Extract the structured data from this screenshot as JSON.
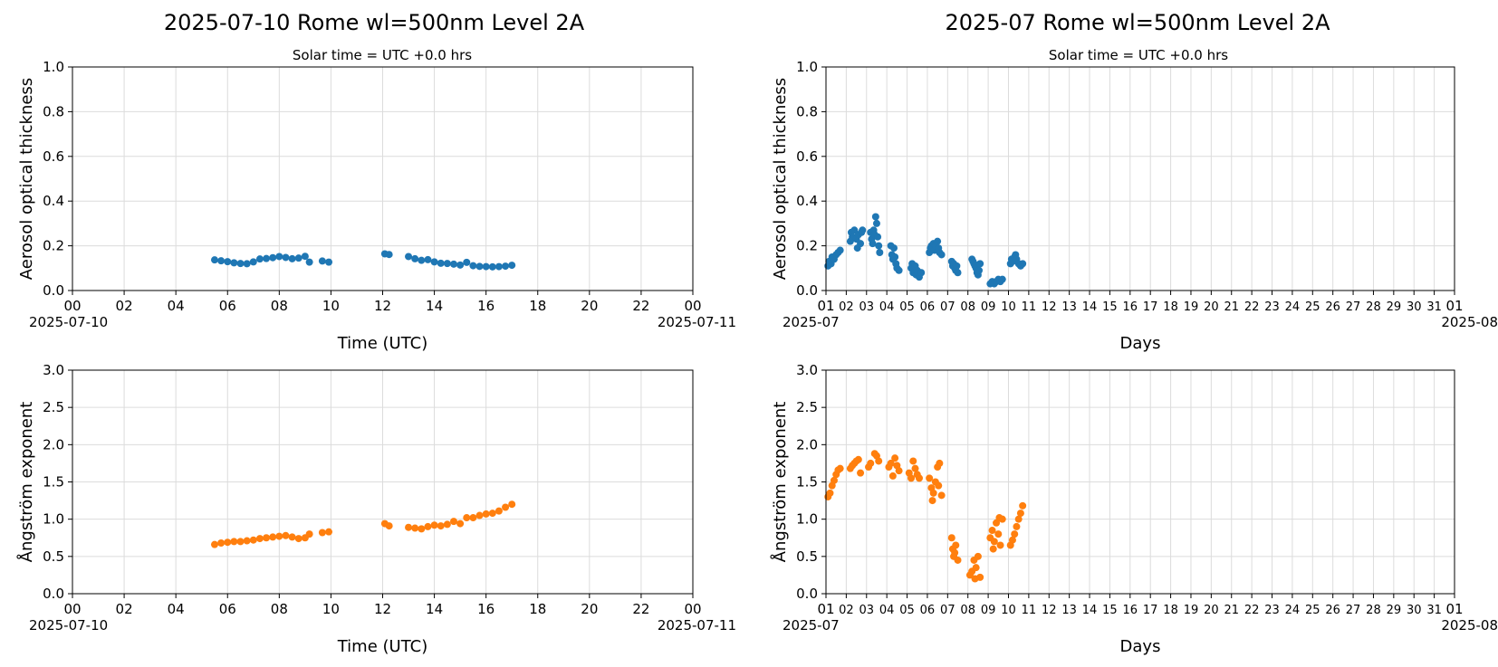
{
  "colors": {
    "aot": "#1f77b4",
    "angstrom": "#ff7f0e",
    "grid": "#dcdcdc"
  },
  "titles": {
    "left": "2025-07-10  Rome  wl=500nm  Level 2A",
    "right": "2025-07  Rome  wl=500nm  Level 2A",
    "solar": "Solar time = UTC +0.0 hrs"
  },
  "chart_data": [
    {
      "type": "scatter",
      "panel": "daily-aot",
      "ylabel": "Aerosol optical thickness",
      "ylim": [
        0,
        1.0
      ],
      "yticks": [
        "0.0",
        "0.2",
        "0.4",
        "0.6",
        "0.8",
        "1.0"
      ],
      "xlim": [
        "2025-07-10 00:00",
        "2025-07-11 00:00"
      ],
      "xticks": [
        "00",
        "02",
        "04",
        "06",
        "08",
        "10",
        "12",
        "14",
        "16",
        "18",
        "20",
        "22",
        "00"
      ],
      "x_left_label": "2025-07-10",
      "x_right_label": "2025-07-11",
      "grid": true,
      "points": [
        {
          "t": "05:30",
          "y": 0.137
        },
        {
          "t": "05:45",
          "y": 0.133
        },
        {
          "t": "06:00",
          "y": 0.129
        },
        {
          "t": "06:15",
          "y": 0.124
        },
        {
          "t": "06:30",
          "y": 0.121
        },
        {
          "t": "06:45",
          "y": 0.12
        },
        {
          "t": "07:00",
          "y": 0.128
        },
        {
          "t": "07:15",
          "y": 0.141
        },
        {
          "t": "07:30",
          "y": 0.143
        },
        {
          "t": "07:45",
          "y": 0.147
        },
        {
          "t": "08:00",
          "y": 0.152
        },
        {
          "t": "08:15",
          "y": 0.148
        },
        {
          "t": "08:30",
          "y": 0.142
        },
        {
          "t": "08:45",
          "y": 0.145
        },
        {
          "t": "09:00",
          "y": 0.153
        },
        {
          "t": "09:10",
          "y": 0.127
        },
        {
          "t": "09:40",
          "y": 0.132
        },
        {
          "t": "09:55",
          "y": 0.127
        },
        {
          "t": "12:05",
          "y": 0.164
        },
        {
          "t": "12:15",
          "y": 0.161
        },
        {
          "t": "13:00",
          "y": 0.152
        },
        {
          "t": "13:15",
          "y": 0.142
        },
        {
          "t": "13:30",
          "y": 0.135
        },
        {
          "t": "13:45",
          "y": 0.138
        },
        {
          "t": "14:00",
          "y": 0.128
        },
        {
          "t": "14:15",
          "y": 0.122
        },
        {
          "t": "14:30",
          "y": 0.121
        },
        {
          "t": "14:45",
          "y": 0.118
        },
        {
          "t": "15:00",
          "y": 0.114
        },
        {
          "t": "15:15",
          "y": 0.126
        },
        {
          "t": "15:30",
          "y": 0.111
        },
        {
          "t": "15:45",
          "y": 0.108
        },
        {
          "t": "16:00",
          "y": 0.107
        },
        {
          "t": "16:15",
          "y": 0.106
        },
        {
          "t": "16:30",
          "y": 0.107
        },
        {
          "t": "16:45",
          "y": 0.109
        },
        {
          "t": "17:00",
          "y": 0.113
        }
      ]
    },
    {
      "type": "scatter",
      "panel": "monthly-aot",
      "ylabel": "Aerosol optical thickness",
      "xlabel": "Days",
      "ylim": [
        0,
        1.0
      ],
      "yticks": [
        "0.0",
        "0.2",
        "0.4",
        "0.6",
        "0.8",
        "1.0"
      ],
      "xlim": [
        "2025-07-01",
        "2025-08-01"
      ],
      "xticks": [
        "01",
        "02",
        "03",
        "04",
        "05",
        "06",
        "07",
        "08",
        "09",
        "10",
        "11",
        "12",
        "13",
        "14",
        "15",
        "16",
        "17",
        "18",
        "19",
        "20",
        "21",
        "22",
        "23",
        "24",
        "25",
        "26",
        "27",
        "28",
        "29",
        "30",
        "31",
        "01"
      ],
      "x_left_label": "2025-07",
      "x_right_label": "2025-08",
      "grid": true,
      "points": [
        {
          "d": 1.1,
          "y": 0.11
        },
        {
          "d": 1.15,
          "y": 0.13
        },
        {
          "d": 1.25,
          "y": 0.12
        },
        {
          "d": 1.3,
          "y": 0.15
        },
        {
          "d": 1.4,
          "y": 0.14
        },
        {
          "d": 1.5,
          "y": 0.16
        },
        {
          "d": 1.6,
          "y": 0.17
        },
        {
          "d": 1.7,
          "y": 0.18
        },
        {
          "d": 2.2,
          "y": 0.22
        },
        {
          "d": 2.25,
          "y": 0.26
        },
        {
          "d": 2.3,
          "y": 0.24
        },
        {
          "d": 2.4,
          "y": 0.27
        },
        {
          "d": 2.5,
          "y": 0.23
        },
        {
          "d": 2.55,
          "y": 0.19
        },
        {
          "d": 2.6,
          "y": 0.25
        },
        {
          "d": 2.7,
          "y": 0.21
        },
        {
          "d": 2.75,
          "y": 0.26
        },
        {
          "d": 2.8,
          "y": 0.27
        },
        {
          "d": 3.2,
          "y": 0.26
        },
        {
          "d": 3.25,
          "y": 0.23
        },
        {
          "d": 3.3,
          "y": 0.21
        },
        {
          "d": 3.35,
          "y": 0.27
        },
        {
          "d": 3.4,
          "y": 0.25
        },
        {
          "d": 3.45,
          "y": 0.33
        },
        {
          "d": 3.5,
          "y": 0.3
        },
        {
          "d": 3.55,
          "y": 0.24
        },
        {
          "d": 3.6,
          "y": 0.2
        },
        {
          "d": 3.65,
          "y": 0.17
        },
        {
          "d": 4.2,
          "y": 0.2
        },
        {
          "d": 4.25,
          "y": 0.16
        },
        {
          "d": 4.3,
          "y": 0.14
        },
        {
          "d": 4.35,
          "y": 0.19
        },
        {
          "d": 4.4,
          "y": 0.15
        },
        {
          "d": 4.45,
          "y": 0.12
        },
        {
          "d": 4.5,
          "y": 0.1
        },
        {
          "d": 4.6,
          "y": 0.09
        },
        {
          "d": 5.2,
          "y": 0.1
        },
        {
          "d": 5.25,
          "y": 0.12
        },
        {
          "d": 5.3,
          "y": 0.08
        },
        {
          "d": 5.4,
          "y": 0.11
        },
        {
          "d": 5.45,
          "y": 0.07
        },
        {
          "d": 5.5,
          "y": 0.09
        },
        {
          "d": 5.6,
          "y": 0.06
        },
        {
          "d": 5.7,
          "y": 0.08
        },
        {
          "d": 6.1,
          "y": 0.17
        },
        {
          "d": 6.15,
          "y": 0.19
        },
        {
          "d": 6.2,
          "y": 0.2
        },
        {
          "d": 6.3,
          "y": 0.21
        },
        {
          "d": 6.35,
          "y": 0.18
        },
        {
          "d": 6.4,
          "y": 0.2
        },
        {
          "d": 6.5,
          "y": 0.22
        },
        {
          "d": 6.55,
          "y": 0.19
        },
        {
          "d": 6.6,
          "y": 0.17
        },
        {
          "d": 6.7,
          "y": 0.16
        },
        {
          "d": 7.2,
          "y": 0.13
        },
        {
          "d": 7.25,
          "y": 0.11
        },
        {
          "d": 7.3,
          "y": 0.12
        },
        {
          "d": 7.35,
          "y": 0.1
        },
        {
          "d": 7.4,
          "y": 0.09
        },
        {
          "d": 7.45,
          "y": 0.11
        },
        {
          "d": 7.5,
          "y": 0.08
        },
        {
          "d": 8.2,
          "y": 0.14
        },
        {
          "d": 8.25,
          "y": 0.13
        },
        {
          "d": 8.3,
          "y": 0.12
        },
        {
          "d": 8.35,
          "y": 0.11
        },
        {
          "d": 8.4,
          "y": 0.1
        },
        {
          "d": 8.45,
          "y": 0.08
        },
        {
          "d": 8.5,
          "y": 0.07
        },
        {
          "d": 8.55,
          "y": 0.09
        },
        {
          "d": 8.6,
          "y": 0.12
        },
        {
          "d": 9.1,
          "y": 0.03
        },
        {
          "d": 9.2,
          "y": 0.04
        },
        {
          "d": 9.3,
          "y": 0.03
        },
        {
          "d": 9.4,
          "y": 0.04
        },
        {
          "d": 9.5,
          "y": 0.05
        },
        {
          "d": 9.6,
          "y": 0.04
        },
        {
          "d": 9.7,
          "y": 0.05
        },
        {
          "d": 10.1,
          "y": 0.12
        },
        {
          "d": 10.15,
          "y": 0.14
        },
        {
          "d": 10.2,
          "y": 0.13
        },
        {
          "d": 10.3,
          "y": 0.15
        },
        {
          "d": 10.35,
          "y": 0.16
        },
        {
          "d": 10.4,
          "y": 0.14
        },
        {
          "d": 10.5,
          "y": 0.12
        },
        {
          "d": 10.6,
          "y": 0.11
        },
        {
          "d": 10.7,
          "y": 0.12
        }
      ]
    },
    {
      "type": "scatter",
      "panel": "daily-angstrom",
      "ylabel": "Ångström exponent",
      "xlabel": "Time (UTC)",
      "ylim": [
        0,
        3.0
      ],
      "yticks": [
        "0.0",
        "0.5",
        "1.0",
        "1.5",
        "2.0",
        "2.5",
        "3.0"
      ],
      "xlim": [
        "2025-07-10 00:00",
        "2025-07-11 00:00"
      ],
      "xticks": [
        "00",
        "02",
        "04",
        "06",
        "08",
        "10",
        "12",
        "14",
        "16",
        "18",
        "20",
        "22",
        "00"
      ],
      "x_left_label": "2025-07-10",
      "x_right_label": "2025-07-11",
      "grid": true,
      "points": [
        {
          "t": "05:30",
          "y": 0.66
        },
        {
          "t": "05:45",
          "y": 0.68
        },
        {
          "t": "06:00",
          "y": 0.69
        },
        {
          "t": "06:15",
          "y": 0.7
        },
        {
          "t": "06:30",
          "y": 0.7
        },
        {
          "t": "06:45",
          "y": 0.71
        },
        {
          "t": "07:00",
          "y": 0.72
        },
        {
          "t": "07:15",
          "y": 0.74
        },
        {
          "t": "07:30",
          "y": 0.75
        },
        {
          "t": "07:45",
          "y": 0.76
        },
        {
          "t": "08:00",
          "y": 0.77
        },
        {
          "t": "08:15",
          "y": 0.78
        },
        {
          "t": "08:30",
          "y": 0.76
        },
        {
          "t": "08:45",
          "y": 0.74
        },
        {
          "t": "09:00",
          "y": 0.75
        },
        {
          "t": "09:10",
          "y": 0.8
        },
        {
          "t": "09:40",
          "y": 0.82
        },
        {
          "t": "09:55",
          "y": 0.83
        },
        {
          "t": "12:05",
          "y": 0.94
        },
        {
          "t": "12:15",
          "y": 0.91
        },
        {
          "t": "13:00",
          "y": 0.89
        },
        {
          "t": "13:15",
          "y": 0.88
        },
        {
          "t": "13:30",
          "y": 0.87
        },
        {
          "t": "13:45",
          "y": 0.9
        },
        {
          "t": "14:00",
          "y": 0.92
        },
        {
          "t": "14:15",
          "y": 0.91
        },
        {
          "t": "14:30",
          "y": 0.93
        },
        {
          "t": "14:45",
          "y": 0.97
        },
        {
          "t": "15:00",
          "y": 0.94
        },
        {
          "t": "15:15",
          "y": 1.02
        },
        {
          "t": "15:30",
          "y": 1.02
        },
        {
          "t": "15:45",
          "y": 1.05
        },
        {
          "t": "16:00",
          "y": 1.07
        },
        {
          "t": "16:15",
          "y": 1.08
        },
        {
          "t": "16:30",
          "y": 1.11
        },
        {
          "t": "16:45",
          "y": 1.16
        },
        {
          "t": "17:00",
          "y": 1.2
        }
      ]
    },
    {
      "type": "scatter",
      "panel": "monthly-angstrom",
      "ylabel": "Ångström exponent",
      "xlabel": "Days",
      "ylim": [
        0,
        3.0
      ],
      "yticks": [
        "0.0",
        "0.5",
        "1.0",
        "1.5",
        "2.0",
        "2.5",
        "3.0"
      ],
      "xlim": [
        "2025-07-01",
        "2025-08-01"
      ],
      "xticks": [
        "01",
        "02",
        "03",
        "04",
        "05",
        "06",
        "07",
        "08",
        "09",
        "10",
        "11",
        "12",
        "13",
        "14",
        "15",
        "16",
        "17",
        "18",
        "19",
        "20",
        "21",
        "22",
        "23",
        "24",
        "25",
        "26",
        "27",
        "28",
        "29",
        "30",
        "31",
        "01"
      ],
      "x_left_label": "2025-07",
      "x_right_label": "2025-08",
      "grid": true,
      "points": [
        {
          "d": 1.1,
          "y": 1.3
        },
        {
          "d": 1.2,
          "y": 1.35
        },
        {
          "d": 1.3,
          "y": 1.45
        },
        {
          "d": 1.4,
          "y": 1.52
        },
        {
          "d": 1.5,
          "y": 1.6
        },
        {
          "d": 1.6,
          "y": 1.66
        },
        {
          "d": 1.7,
          "y": 1.68
        },
        {
          "d": 2.2,
          "y": 1.68
        },
        {
          "d": 2.3,
          "y": 1.72
        },
        {
          "d": 2.4,
          "y": 1.75
        },
        {
          "d": 2.5,
          "y": 1.78
        },
        {
          "d": 2.6,
          "y": 1.8
        },
        {
          "d": 2.7,
          "y": 1.62
        },
        {
          "d": 3.1,
          "y": 1.7
        },
        {
          "d": 3.2,
          "y": 1.75
        },
        {
          "d": 3.4,
          "y": 1.88
        },
        {
          "d": 3.5,
          "y": 1.85
        },
        {
          "d": 3.6,
          "y": 1.78
        },
        {
          "d": 4.1,
          "y": 1.7
        },
        {
          "d": 4.2,
          "y": 1.75
        },
        {
          "d": 4.3,
          "y": 1.58
        },
        {
          "d": 4.4,
          "y": 1.82
        },
        {
          "d": 4.5,
          "y": 1.72
        },
        {
          "d": 4.6,
          "y": 1.65
        },
        {
          "d": 5.1,
          "y": 1.62
        },
        {
          "d": 5.2,
          "y": 1.55
        },
        {
          "d": 5.3,
          "y": 1.78
        },
        {
          "d": 5.4,
          "y": 1.68
        },
        {
          "d": 5.5,
          "y": 1.6
        },
        {
          "d": 5.6,
          "y": 1.55
        },
        {
          "d": 6.1,
          "y": 1.55
        },
        {
          "d": 6.2,
          "y": 1.42
        },
        {
          "d": 6.25,
          "y": 1.25
        },
        {
          "d": 6.3,
          "y": 1.35
        },
        {
          "d": 6.4,
          "y": 1.5
        },
        {
          "d": 6.5,
          "y": 1.7
        },
        {
          "d": 6.55,
          "y": 1.45
        },
        {
          "d": 6.6,
          "y": 1.75
        },
        {
          "d": 6.7,
          "y": 1.32
        },
        {
          "d": 7.2,
          "y": 0.75
        },
        {
          "d": 7.25,
          "y": 0.6
        },
        {
          "d": 7.3,
          "y": 0.5
        },
        {
          "d": 7.35,
          "y": 0.55
        },
        {
          "d": 7.4,
          "y": 0.65
        },
        {
          "d": 7.5,
          "y": 0.45
        },
        {
          "d": 8.1,
          "y": 0.25
        },
        {
          "d": 8.2,
          "y": 0.3
        },
        {
          "d": 8.3,
          "y": 0.45
        },
        {
          "d": 8.35,
          "y": 0.2
        },
        {
          "d": 8.4,
          "y": 0.35
        },
        {
          "d": 8.5,
          "y": 0.5
        },
        {
          "d": 8.6,
          "y": 0.22
        },
        {
          "d": 9.1,
          "y": 0.75
        },
        {
          "d": 9.2,
          "y": 0.85
        },
        {
          "d": 9.25,
          "y": 0.6
        },
        {
          "d": 9.3,
          "y": 0.7
        },
        {
          "d": 9.4,
          "y": 0.95
        },
        {
          "d": 9.5,
          "y": 0.8
        },
        {
          "d": 9.55,
          "y": 1.02
        },
        {
          "d": 9.6,
          "y": 0.65
        },
        {
          "d": 9.7,
          "y": 1.0
        },
        {
          "d": 10.1,
          "y": 0.65
        },
        {
          "d": 10.2,
          "y": 0.72
        },
        {
          "d": 10.3,
          "y": 0.8
        },
        {
          "d": 10.4,
          "y": 0.9
        },
        {
          "d": 10.5,
          "y": 1.0
        },
        {
          "d": 10.6,
          "y": 1.08
        },
        {
          "d": 10.7,
          "y": 1.18
        }
      ]
    }
  ]
}
